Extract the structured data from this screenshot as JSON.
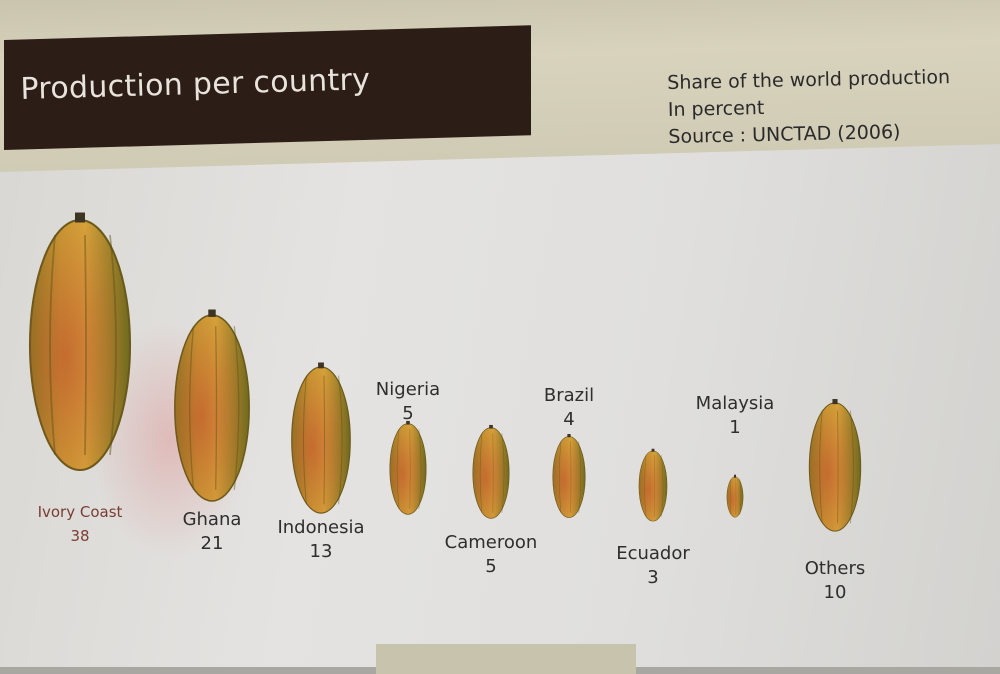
{
  "header": {
    "title": "Production per country",
    "meta_lines": [
      "Share of the world production",
      "In percent",
      "Source : UNCTAD (2006)"
    ]
  },
  "chart_data": {
    "type": "bubble",
    "title": "Production per country",
    "subtitle": "Share of the world production",
    "unit": "In percent",
    "source": "Source : UNCTAD (2006)",
    "categories": [
      "Ivory Coast",
      "Ghana",
      "Indonesia",
      "Nigeria",
      "Cameroon",
      "Brazil",
      "Ecuador",
      "Malaysia",
      "Others"
    ],
    "values": [
      38,
      21,
      13,
      5,
      5,
      4,
      3,
      1,
      10
    ],
    "series": [
      {
        "name": "",
        "values": [
          38,
          21,
          13,
          5,
          5,
          4,
          3,
          1,
          10
        ]
      }
    ],
    "colors": {
      "pod_outer": "#7e8a2a",
      "pod_inner": "#c9952e",
      "pod_red": "#b0402a",
      "label_first": "#7a3d33",
      "label": "#2e2e2e"
    }
  }
}
